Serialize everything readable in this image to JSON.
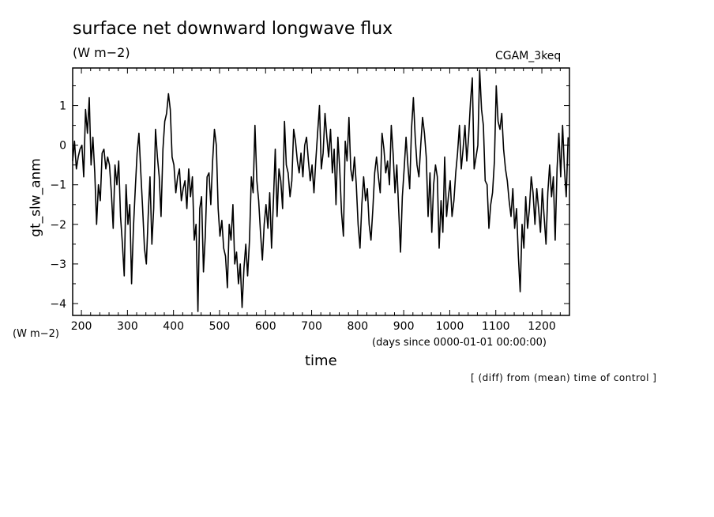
{
  "chart_data": {
    "type": "line",
    "title": "surface net downward longwave flux",
    "units": "(W m−2)",
    "dataset": "CGAM_3keq",
    "ylabel": "gt_slw_anm",
    "ylabel_units": "(W m−2)",
    "xlabel": "time",
    "xlabel_units": "(days since 0000-01-01 00:00:00)",
    "note": "[ (diff) from (mean) time of control ]",
    "xlim": [
      181,
      1260
    ],
    "ylim": [
      -4.3,
      1.95
    ],
    "xticks": [
      200,
      300,
      400,
      500,
      600,
      700,
      800,
      900,
      1000,
      1100,
      1200
    ],
    "yticks": [
      1,
      0,
      -1,
      -2,
      -3,
      -4
    ],
    "grid": false,
    "series": [
      {
        "x": [
          181,
          185,
          189,
          193,
          197,
          201,
          205,
          209,
          213,
          217,
          221,
          225,
          229,
          233,
          237,
          241,
          245,
          249,
          253,
          257,
          261,
          265,
          269,
          273,
          277,
          281,
          285,
          289,
          293,
          297,
          301,
          305,
          309,
          313,
          317,
          321,
          325,
          329,
          333,
          337,
          341,
          345,
          349,
          353,
          357,
          361,
          365,
          369,
          373,
          377,
          381,
          385,
          389,
          393,
          397,
          401,
          405,
          409,
          413,
          417,
          421,
          425,
          429,
          433,
          437,
          441,
          445,
          449,
          453,
          457,
          461,
          465,
          469,
          473,
          477,
          481,
          485,
          489,
          493,
          497,
          501,
          505,
          509,
          513,
          517,
          521,
          525,
          529,
          533,
          537,
          541,
          545,
          549,
          553,
          557,
          561,
          565,
          569,
          573,
          577,
          581,
          585,
          589,
          593,
          597,
          601,
          605,
          609,
          613,
          617,
          621,
          625,
          629,
          633,
          637,
          641,
          645,
          649,
          653,
          657,
          661,
          665,
          669,
          673,
          677,
          681,
          685,
          689,
          693,
          697,
          701,
          705,
          709,
          713,
          717,
          721,
          725,
          729,
          733,
          737,
          741,
          745,
          749,
          753,
          757,
          761,
          765,
          769,
          773,
          777,
          781,
          785,
          789,
          793,
          797,
          801,
          805,
          809,
          813,
          817,
          821,
          825,
          829,
          833,
          837,
          841,
          845,
          849,
          853,
          857,
          861,
          865,
          869,
          873,
          877,
          881,
          885,
          889,
          893,
          897,
          901,
          905,
          909,
          913,
          917,
          921,
          925,
          929,
          933,
          937,
          941,
          945,
          949,
          953,
          957,
          961,
          965,
          969,
          973,
          977,
          981,
          985,
          989,
          993,
          997,
          1001,
          1005,
          1009,
          1013,
          1017,
          1021,
          1025,
          1029,
          1033,
          1037,
          1041,
          1045,
          1049,
          1053,
          1057,
          1061,
          1065,
          1069,
          1073,
          1077,
          1081,
          1085,
          1089,
          1093,
          1097,
          1101,
          1105,
          1109,
          1113,
          1117,
          1121,
          1125,
          1129,
          1133,
          1137,
          1141,
          1145,
          1149,
          1153,
          1157,
          1161,
          1165,
          1169,
          1173,
          1177,
          1181,
          1185,
          1189,
          1193,
          1197,
          1201,
          1205,
          1209,
          1213,
          1217,
          1221,
          1225,
          1229,
          1233,
          1237,
          1241,
          1245,
          1249,
          1253,
          1257
        ],
        "values": [
          -0.4,
          0.1,
          -0.6,
          -0.3,
          -0.1,
          0.0,
          -0.8,
          0.9,
          0.3,
          1.2,
          -0.5,
          0.2,
          -0.7,
          -2.0,
          -1.0,
          -1.4,
          -0.2,
          -0.1,
          -0.6,
          -0.3,
          -0.5,
          -1.2,
          -2.1,
          -0.5,
          -1.0,
          -0.4,
          -1.8,
          -2.5,
          -3.3,
          -1.0,
          -2.0,
          -1.5,
          -3.5,
          -2.1,
          -1.1,
          -0.2,
          0.3,
          -0.7,
          -1.6,
          -2.6,
          -3.0,
          -1.8,
          -0.8,
          -2.5,
          -1.6,
          0.4,
          -0.3,
          -0.8,
          -1.8,
          -0.1,
          0.6,
          0.8,
          1.3,
          0.9,
          -0.3,
          -0.5,
          -1.2,
          -0.8,
          -0.6,
          -1.4,
          -1.1,
          -0.9,
          -1.6,
          -0.6,
          -1.3,
          -0.8,
          -2.4,
          -2.0,
          -4.2,
          -1.6,
          -1.3,
          -3.2,
          -2.3,
          -0.8,
          -0.7,
          -1.5,
          -0.4,
          0.4,
          0.0,
          -1.6,
          -2.3,
          -1.9,
          -2.6,
          -2.8,
          -3.6,
          -2.0,
          -2.4,
          -1.5,
          -3.0,
          -2.7,
          -3.5,
          -3.0,
          -4.1,
          -3.1,
          -2.5,
          -3.3,
          -2.4,
          -0.8,
          -1.2,
          0.5,
          -0.9,
          -1.4,
          -2.2,
          -2.9,
          -2.0,
          -1.5,
          -2.1,
          -1.2,
          -2.6,
          -1.4,
          -0.1,
          -1.8,
          -0.6,
          -0.9,
          -1.6,
          0.6,
          -0.5,
          -0.7,
          -1.3,
          -0.9,
          0.4,
          0.1,
          -0.4,
          -0.7,
          -0.2,
          -0.8,
          0.0,
          0.2,
          -0.4,
          -0.9,
          -0.5,
          -1.2,
          -0.4,
          0.3,
          1.0,
          -0.6,
          -0.2,
          0.8,
          0.2,
          -0.3,
          0.4,
          -0.7,
          -0.1,
          -1.5,
          0.2,
          -0.6,
          -1.7,
          -2.3,
          0.1,
          -0.4,
          0.7,
          -0.6,
          -0.9,
          -0.3,
          -1.0,
          -2.0,
          -2.6,
          -1.5,
          -0.8,
          -1.4,
          -1.1,
          -2.0,
          -2.4,
          -1.6,
          -0.7,
          -0.3,
          -0.8,
          -1.2,
          0.3,
          -0.1,
          -0.7,
          -0.4,
          -1.0,
          0.5,
          -0.2,
          -1.2,
          -0.5,
          -1.6,
          -2.7,
          -1.3,
          -0.6,
          0.2,
          -0.5,
          -1.1,
          0.4,
          1.2,
          0.2,
          -0.5,
          -0.8,
          0.0,
          0.7,
          0.3,
          -0.3,
          -1.8,
          -0.7,
          -2.2,
          -1.0,
          -0.5,
          -0.8,
          -2.6,
          -1.4,
          -2.2,
          -0.3,
          -1.8,
          -1.3,
          -0.9,
          -1.8,
          -1.4,
          -0.7,
          -0.2,
          0.5,
          -0.6,
          -0.1,
          0.5,
          -0.4,
          0.2,
          1.1,
          1.7,
          -0.6,
          -0.3,
          0.0,
          1.9,
          0.9,
          0.5,
          -0.9,
          -1.0,
          -2.1,
          -1.5,
          -1.2,
          -0.4,
          1.5,
          0.6,
          0.4,
          0.8,
          -0.1,
          -0.6,
          -0.9,
          -1.4,
          -1.8,
          -1.1,
          -2.1,
          -1.6,
          -2.8,
          -3.7,
          -2.0,
          -2.6,
          -1.3,
          -2.1,
          -1.6,
          -0.8,
          -1.2,
          -2.0,
          -1.1,
          -1.6,
          -2.2,
          -1.1,
          -1.8,
          -2.5,
          -1.2,
          -0.5,
          -1.3,
          -0.8,
          -2.4,
          -0.6,
          0.3,
          -0.8,
          0.5,
          -0.6,
          -1.3,
          0.2
        ]
      }
    ]
  }
}
